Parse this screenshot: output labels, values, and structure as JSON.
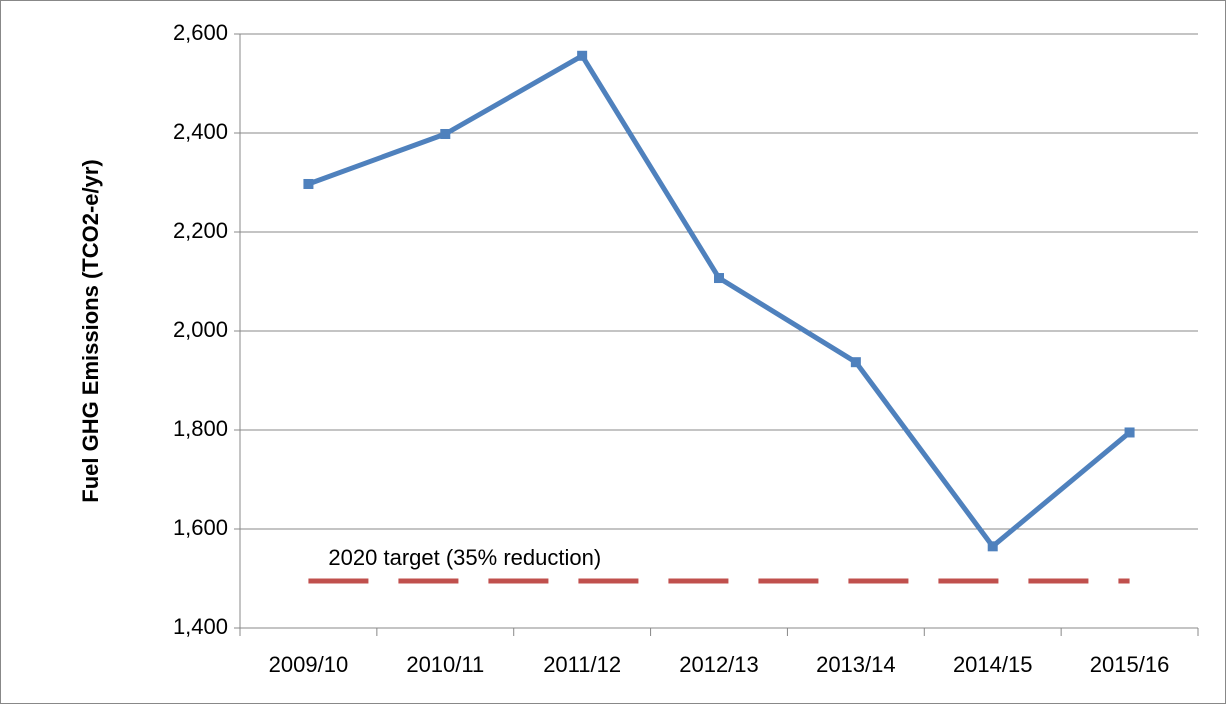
{
  "chart_data": {
    "type": "line",
    "y_label": "Fuel GHG Emissions (TCO2-e/yr)",
    "categories": [
      "2009/10",
      "2010/11",
      "2011/12",
      "2012/13",
      "2013/14",
      "2014/15",
      "2015/16"
    ],
    "series": [
      {
        "color": "#4f81bd",
        "values": [
          2297,
          2398,
          2556,
          2107,
          1937,
          1565,
          1795
        ]
      },
      {
        "name": "2020 target (35% reduction)",
        "color": "#c0504d",
        "dashed": true,
        "values": [
          1495,
          1495,
          1495,
          1495,
          1495,
          1495,
          1495
        ]
      }
    ],
    "ylim": [
      1400,
      2600
    ],
    "yticks": [
      {
        "value": 1400,
        "label": "1,400"
      },
      {
        "value": 1600,
        "label": "1,600"
      },
      {
        "value": 1800,
        "label": "1,800"
      },
      {
        "value": 2000,
        "label": "2,000"
      },
      {
        "value": 2200,
        "label": "2,200"
      },
      {
        "value": 2400,
        "label": "2,400"
      },
      {
        "value": 2600,
        "label": "2,600"
      }
    ],
    "grid": true
  }
}
